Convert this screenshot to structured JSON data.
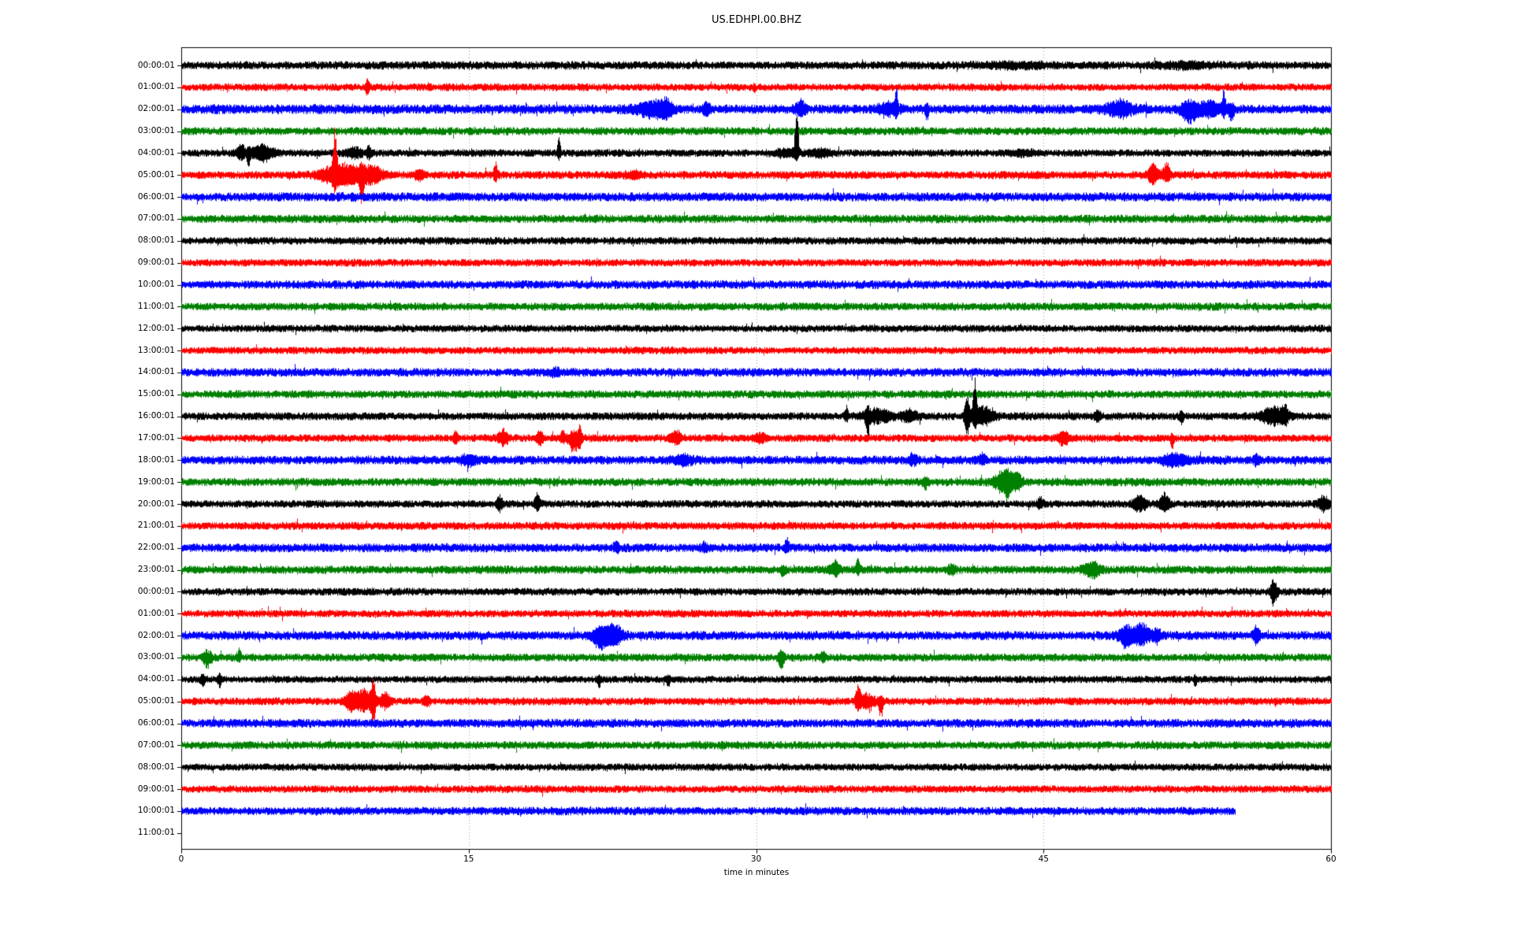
{
  "chart_data": {
    "type": "line",
    "subtype": "seismogram-dayplot",
    "title": "US.EDHPI.00.BHZ",
    "xlabel": "time in minutes",
    "xlim": [
      0,
      60
    ],
    "x_ticks": [
      "0",
      "15",
      "30",
      "45",
      "60"
    ],
    "x_tick_values": [
      0,
      15,
      30,
      45,
      60
    ],
    "grid_minutes": [
      15,
      30,
      45
    ],
    "grid_style": "dotted-vertical",
    "legend": "none",
    "colors": {
      "cycle": [
        "#000000",
        "#ff0000",
        "#0000ff",
        "#008000"
      ],
      "axis": "#000000",
      "grid": "#999999",
      "background": "#ffffff",
      "text": "#000000"
    },
    "traces": [
      {
        "label": "00:00:01",
        "color": "#000000",
        "start": 0,
        "end": 60,
        "amp": 3.3,
        "events": [
          {
            "t": 43.5,
            "w": 3.0,
            "up": 2,
            "dn": 2
          },
          {
            "t": 52.5,
            "w": 2.5,
            "up": 2.5,
            "dn": 2.5
          }
        ]
      },
      {
        "label": "01:00:01",
        "color": "#ff0000",
        "start": 0,
        "end": 60,
        "amp": 3.0,
        "events": [
          {
            "t": 9.7,
            "w": 0.2,
            "up": 9,
            "dn": 9
          },
          {
            "t": 29.9,
            "w": 0.15,
            "up": 2,
            "dn": 6
          }
        ]
      },
      {
        "label": "02:00:01",
        "color": "#0000ff",
        "start": 0,
        "end": 60,
        "amp": 3.8,
        "events": [
          {
            "t": 24.6,
            "w": 1.6,
            "up": 9,
            "dn": 9
          },
          {
            "t": 25.3,
            "w": 0.5,
            "up": 8,
            "dn": 8
          },
          {
            "t": 27.4,
            "w": 0.4,
            "up": 7,
            "dn": 7
          },
          {
            "t": 32.3,
            "w": 0.5,
            "up": 9,
            "dn": 7
          },
          {
            "t": 36.9,
            "w": 1.0,
            "up": 8,
            "dn": 8
          },
          {
            "t": 37.3,
            "w": 0.15,
            "up": 20,
            "dn": 6
          },
          {
            "t": 38.9,
            "w": 0.15,
            "up": 4,
            "dn": 13
          },
          {
            "t": 49.0,
            "w": 1.2,
            "up": 9,
            "dn": 8
          },
          {
            "t": 52.6,
            "w": 0.8,
            "up": 8,
            "dn": 16
          },
          {
            "t": 53.6,
            "w": 1.2,
            "up": 8,
            "dn": 8
          },
          {
            "t": 54.4,
            "w": 0.2,
            "up": 22,
            "dn": 8
          },
          {
            "t": 54.8,
            "w": 0.3,
            "up": 6,
            "dn": 12
          }
        ]
      },
      {
        "label": "03:00:01",
        "color": "#008000",
        "start": 0,
        "end": 60,
        "amp": 3.2,
        "events": []
      },
      {
        "label": "04:00:01",
        "color": "#000000",
        "start": 0,
        "end": 60,
        "amp": 3.0,
        "events": [
          {
            "t": 3.1,
            "w": 0.5,
            "up": 9,
            "dn": 7
          },
          {
            "t": 3.5,
            "w": 0.15,
            "up": 4,
            "dn": 17
          },
          {
            "t": 4.2,
            "w": 1.2,
            "up": 9,
            "dn": 8
          },
          {
            "t": 9.0,
            "w": 0.8,
            "up": 6,
            "dn": 5
          },
          {
            "t": 9.8,
            "w": 0.3,
            "up": 7,
            "dn": 5
          },
          {
            "t": 19.7,
            "w": 0.15,
            "up": 19,
            "dn": 7
          },
          {
            "t": 31.5,
            "w": 1.2,
            "up": 4,
            "dn": 4
          },
          {
            "t": 32.1,
            "w": 0.18,
            "up": 70,
            "dn": 8
          },
          {
            "t": 33.4,
            "w": 1.2,
            "up": 4,
            "dn": 4
          },
          {
            "t": 44.0,
            "w": 1.5,
            "up": 2.5,
            "dn": 2.5
          }
        ]
      },
      {
        "label": "05:00:01",
        "color": "#ff0000",
        "start": 0,
        "end": 60,
        "amp": 3.2,
        "events": [
          {
            "t": 8.0,
            "w": 0.2,
            "up": 52,
            "dn": 10
          },
          {
            "t": 8.3,
            "w": 1.8,
            "up": 14,
            "dn": 14
          },
          {
            "t": 9.4,
            "w": 0.2,
            "up": 8,
            "dn": 30
          },
          {
            "t": 9.9,
            "w": 1.2,
            "up": 10,
            "dn": 10
          },
          {
            "t": 12.4,
            "w": 0.5,
            "up": 6,
            "dn": 5
          },
          {
            "t": 16.4,
            "w": 0.2,
            "up": 16,
            "dn": 6
          },
          {
            "t": 23.6,
            "w": 1.0,
            "up": 3,
            "dn": 3
          },
          {
            "t": 50.7,
            "w": 0.5,
            "up": 12,
            "dn": 10
          },
          {
            "t": 51.4,
            "w": 0.4,
            "up": 14,
            "dn": 8
          }
        ]
      },
      {
        "label": "06:00:01",
        "color": "#0000ff",
        "start": 0,
        "end": 60,
        "amp": 3.6,
        "events": []
      },
      {
        "label": "07:00:01",
        "color": "#008000",
        "start": 0,
        "end": 60,
        "amp": 3.3,
        "events": []
      },
      {
        "label": "08:00:01",
        "color": "#000000",
        "start": 0,
        "end": 60,
        "amp": 3.0,
        "events": []
      },
      {
        "label": "09:00:01",
        "color": "#ff0000",
        "start": 0,
        "end": 60,
        "amp": 3.0,
        "events": []
      },
      {
        "label": "10:00:01",
        "color": "#0000ff",
        "start": 0,
        "end": 60,
        "amp": 3.4,
        "events": []
      },
      {
        "label": "11:00:01",
        "color": "#008000",
        "start": 0,
        "end": 60,
        "amp": 3.2,
        "events": []
      },
      {
        "label": "12:00:01",
        "color": "#000000",
        "start": 0,
        "end": 60,
        "amp": 2.9,
        "events": []
      },
      {
        "label": "13:00:01",
        "color": "#ff0000",
        "start": 0,
        "end": 60,
        "amp": 2.9,
        "events": []
      },
      {
        "label": "14:00:01",
        "color": "#0000ff",
        "start": 0,
        "end": 60,
        "amp": 3.4,
        "events": [
          {
            "t": 19.5,
            "w": 0.6,
            "up": 3,
            "dn": 3
          }
        ]
      },
      {
        "label": "15:00:01",
        "color": "#008000",
        "start": 0,
        "end": 60,
        "amp": 3.2,
        "events": []
      },
      {
        "label": "16:00:01",
        "color": "#000000",
        "start": 0,
        "end": 60,
        "amp": 3.2,
        "events": [
          {
            "t": 34.7,
            "w": 0.2,
            "up": 10,
            "dn": 5
          },
          {
            "t": 35.8,
            "w": 0.2,
            "up": 8,
            "dn": 24
          },
          {
            "t": 36.3,
            "w": 1.4,
            "up": 8,
            "dn": 7
          },
          {
            "t": 38.0,
            "w": 0.8,
            "up": 7,
            "dn": 6
          },
          {
            "t": 41.0,
            "w": 0.25,
            "up": 26,
            "dn": 26
          },
          {
            "t": 41.4,
            "w": 0.2,
            "up": 42,
            "dn": 10
          },
          {
            "t": 41.8,
            "w": 1.0,
            "up": 12,
            "dn": 10
          },
          {
            "t": 47.8,
            "w": 0.3,
            "up": 5,
            "dn": 5
          },
          {
            "t": 52.2,
            "w": 0.2,
            "up": 6,
            "dn": 9
          },
          {
            "t": 57.0,
            "w": 1.2,
            "up": 10,
            "dn": 9
          },
          {
            "t": 57.6,
            "w": 0.3,
            "up": 12,
            "dn": 8
          }
        ]
      },
      {
        "label": "17:00:01",
        "color": "#ff0000",
        "start": 0,
        "end": 60,
        "amp": 3.1,
        "events": [
          {
            "t": 14.3,
            "w": 0.2,
            "up": 10,
            "dn": 7
          },
          {
            "t": 16.8,
            "w": 0.5,
            "up": 9,
            "dn": 7
          },
          {
            "t": 18.7,
            "w": 0.3,
            "up": 9,
            "dn": 8
          },
          {
            "t": 19.9,
            "w": 0.2,
            "up": 11,
            "dn": 5
          },
          {
            "t": 20.5,
            "w": 0.6,
            "up": 8,
            "dn": 16
          },
          {
            "t": 20.8,
            "w": 0.15,
            "up": 13,
            "dn": 5
          },
          {
            "t": 25.8,
            "w": 0.5,
            "up": 9,
            "dn": 7
          },
          {
            "t": 30.2,
            "w": 0.6,
            "up": 4,
            "dn": 4
          },
          {
            "t": 46.0,
            "w": 0.5,
            "up": 9,
            "dn": 9
          },
          {
            "t": 51.7,
            "w": 0.15,
            "up": 4,
            "dn": 16
          }
        ]
      },
      {
        "label": "18:00:01",
        "color": "#0000ff",
        "start": 0,
        "end": 60,
        "amp": 3.5,
        "events": [
          {
            "t": 15.0,
            "w": 0.8,
            "up": 5,
            "dn": 5
          },
          {
            "t": 26.2,
            "w": 1.0,
            "up": 5,
            "dn": 5
          },
          {
            "t": 38.2,
            "w": 0.4,
            "up": 6,
            "dn": 5
          },
          {
            "t": 41.8,
            "w": 0.3,
            "up": 7,
            "dn": 5
          },
          {
            "t": 51.8,
            "w": 1.2,
            "up": 6,
            "dn": 6
          },
          {
            "t": 56.1,
            "w": 0.3,
            "up": 6,
            "dn": 5
          }
        ]
      },
      {
        "label": "19:00:01",
        "color": "#008000",
        "start": 0,
        "end": 60,
        "amp": 3.3,
        "events": [
          {
            "t": 38.8,
            "w": 0.3,
            "up": 4,
            "dn": 7
          },
          {
            "t": 42.9,
            "w": 1.0,
            "up": 12,
            "dn": 12
          },
          {
            "t": 43.1,
            "w": 0.2,
            "up": 8,
            "dn": 20
          },
          {
            "t": 43.6,
            "w": 0.5,
            "up": 10,
            "dn": 8
          }
        ]
      },
      {
        "label": "20:00:01",
        "color": "#000000",
        "start": 0,
        "end": 60,
        "amp": 3.0,
        "events": [
          {
            "t": 16.6,
            "w": 0.3,
            "up": 9,
            "dn": 7
          },
          {
            "t": 18.6,
            "w": 0.3,
            "up": 14,
            "dn": 8
          },
          {
            "t": 44.8,
            "w": 0.3,
            "up": 7,
            "dn": 5
          },
          {
            "t": 50.0,
            "w": 0.6,
            "up": 10,
            "dn": 9
          },
          {
            "t": 51.3,
            "w": 0.5,
            "up": 12,
            "dn": 8
          },
          {
            "t": 59.6,
            "w": 0.5,
            "up": 9,
            "dn": 8
          }
        ]
      },
      {
        "label": "21:00:01",
        "color": "#ff0000",
        "start": 0,
        "end": 60,
        "amp": 3.1,
        "events": []
      },
      {
        "label": "22:00:01",
        "color": "#0000ff",
        "start": 0,
        "end": 60,
        "amp": 3.5,
        "events": [
          {
            "t": 22.7,
            "w": 0.3,
            "up": 6,
            "dn": 4
          },
          {
            "t": 27.3,
            "w": 0.3,
            "up": 5,
            "dn": 4
          },
          {
            "t": 31.6,
            "w": 0.2,
            "up": 13,
            "dn": 5
          }
        ]
      },
      {
        "label": "23:00:01",
        "color": "#008000",
        "start": 0,
        "end": 60,
        "amp": 3.3,
        "events": [
          {
            "t": 31.4,
            "w": 0.2,
            "up": 4,
            "dn": 11
          },
          {
            "t": 34.1,
            "w": 0.5,
            "up": 9,
            "dn": 6
          },
          {
            "t": 35.3,
            "w": 0.18,
            "up": 16,
            "dn": 6
          },
          {
            "t": 40.2,
            "w": 0.4,
            "up": 5,
            "dn": 5
          },
          {
            "t": 47.5,
            "w": 0.8,
            "up": 9,
            "dn": 8
          }
        ]
      },
      {
        "label": "00:00:01",
        "color": "#000000",
        "start": 0,
        "end": 60,
        "amp": 3.0,
        "events": [
          {
            "t": 57.0,
            "w": 0.35,
            "up": 14,
            "dn": 16
          }
        ]
      },
      {
        "label": "01:00:01",
        "color": "#ff0000",
        "start": 0,
        "end": 60,
        "amp": 3.0,
        "events": []
      },
      {
        "label": "02:00:01",
        "color": "#0000ff",
        "start": 0,
        "end": 60,
        "amp": 3.6,
        "events": [
          {
            "t": 21.9,
            "w": 0.8,
            "up": 10,
            "dn": 16
          },
          {
            "t": 22.6,
            "w": 0.8,
            "up": 12,
            "dn": 10
          },
          {
            "t": 49.3,
            "w": 0.7,
            "up": 12,
            "dn": 14
          },
          {
            "t": 50.1,
            "w": 0.8,
            "up": 14,
            "dn": 10
          },
          {
            "t": 50.9,
            "w": 0.4,
            "up": 8,
            "dn": 8
          },
          {
            "t": 56.1,
            "w": 0.3,
            "up": 12,
            "dn": 10
          }
        ]
      },
      {
        "label": "03:00:01",
        "color": "#008000",
        "start": 0,
        "end": 60,
        "amp": 3.2,
        "events": [
          {
            "t": 1.35,
            "w": 0.4,
            "up": 8,
            "dn": 12
          },
          {
            "t": 3.0,
            "w": 0.2,
            "up": 9,
            "dn": 4
          },
          {
            "t": 31.3,
            "w": 0.3,
            "up": 7,
            "dn": 13
          },
          {
            "t": 33.5,
            "w": 0.3,
            "up": 5,
            "dn": 4
          }
        ]
      },
      {
        "label": "04:00:01",
        "color": "#000000",
        "start": 0,
        "end": 60,
        "amp": 2.9,
        "events": [
          {
            "t": 1.1,
            "w": 0.2,
            "up": 5,
            "dn": 8
          },
          {
            "t": 2.0,
            "w": 0.2,
            "up": 6,
            "dn": 9
          },
          {
            "t": 21.8,
            "w": 0.15,
            "up": 3,
            "dn": 10
          },
          {
            "t": 25.4,
            "w": 0.15,
            "up": 4,
            "dn": 12
          },
          {
            "t": 52.9,
            "w": 0.15,
            "up": 3,
            "dn": 10
          }
        ]
      },
      {
        "label": "05:00:01",
        "color": "#ff0000",
        "start": 0,
        "end": 60,
        "amp": 3.1,
        "events": [
          {
            "t": 8.8,
            "w": 0.6,
            "up": 10,
            "dn": 10
          },
          {
            "t": 9.5,
            "w": 0.8,
            "up": 14,
            "dn": 12
          },
          {
            "t": 10.0,
            "w": 0.25,
            "up": 28,
            "dn": 30
          },
          {
            "t": 10.6,
            "w": 0.5,
            "up": 10,
            "dn": 8
          },
          {
            "t": 12.8,
            "w": 0.3,
            "up": 6,
            "dn": 5
          },
          {
            "t": 35.3,
            "w": 0.25,
            "up": 20,
            "dn": 10
          },
          {
            "t": 35.8,
            "w": 0.8,
            "up": 8,
            "dn": 8
          },
          {
            "t": 36.5,
            "w": 0.2,
            "up": 5,
            "dn": 22
          }
        ]
      },
      {
        "label": "06:00:01",
        "color": "#0000ff",
        "start": 0,
        "end": 60,
        "amp": 3.5,
        "events": []
      },
      {
        "label": "07:00:01",
        "color": "#008000",
        "start": 0,
        "end": 60,
        "amp": 3.2,
        "events": []
      },
      {
        "label": "08:00:01",
        "color": "#000000",
        "start": 0,
        "end": 60,
        "amp": 2.9,
        "events": []
      },
      {
        "label": "09:00:01",
        "color": "#ff0000",
        "start": 0,
        "end": 60,
        "amp": 3.0,
        "events": []
      },
      {
        "label": "10:00:01",
        "color": "#0000ff",
        "start": 0,
        "end": 55,
        "amp": 3.3,
        "events": []
      },
      {
        "label": "11:00:01",
        "color": null,
        "start": 0,
        "end": 0,
        "amp": 0,
        "events": []
      }
    ]
  }
}
